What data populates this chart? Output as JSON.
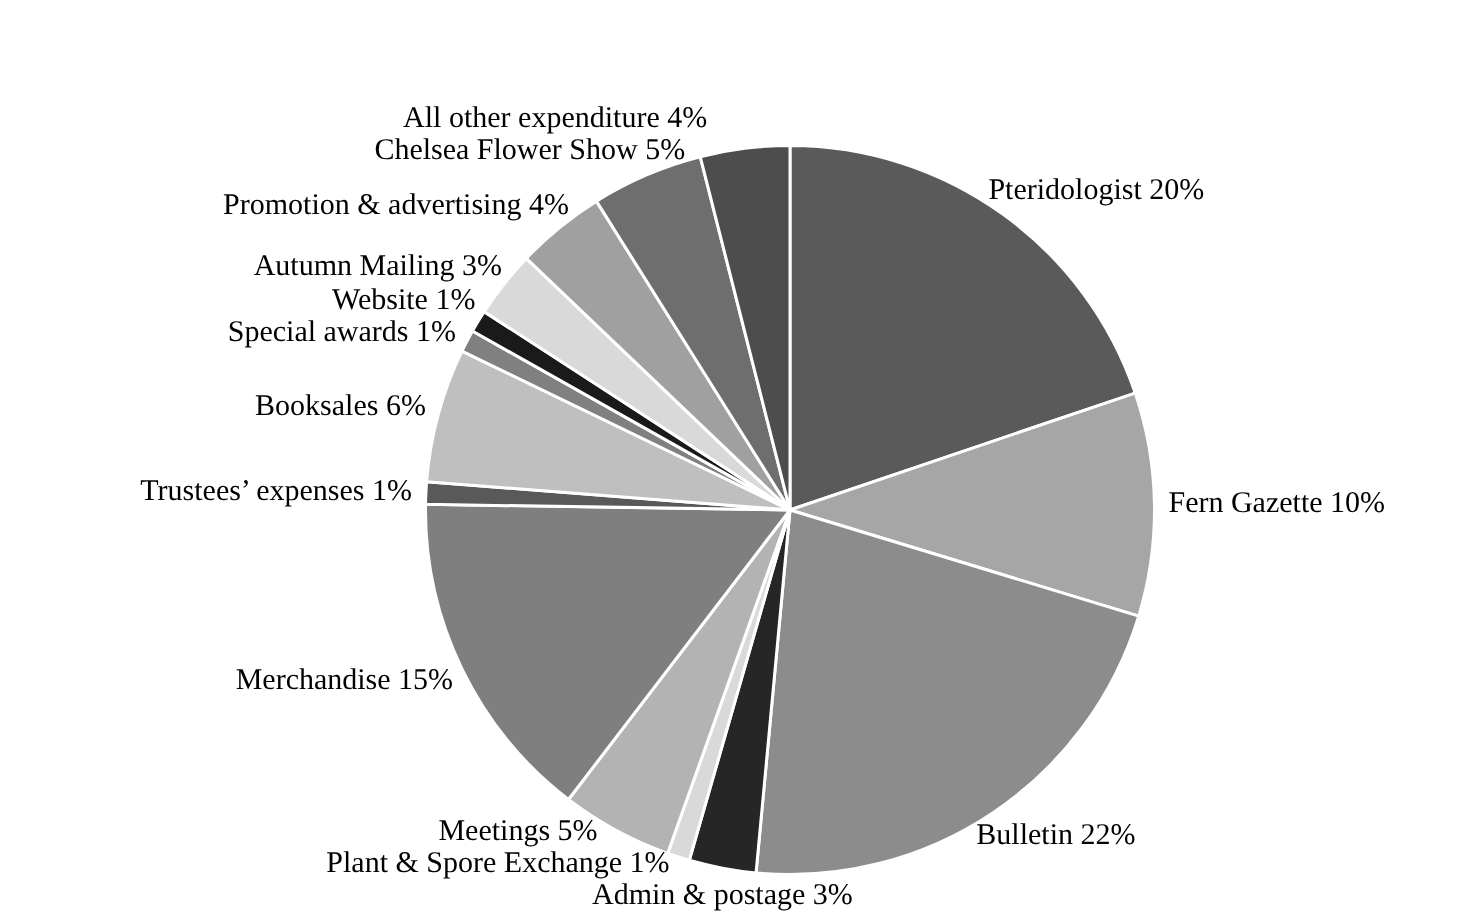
{
  "chart_data": {
    "type": "pie",
    "categories": [
      "Pteridologist",
      "Fern Gazette",
      "Bulletin",
      "Admin & postage",
      "Plant & Spore Exchange",
      "Meetings",
      "Merchandise",
      "Trustees’ expenses",
      "Booksales",
      "Special awards",
      "Website",
      "Autumn Mailing",
      "Promotion & advertising",
      "Chelsea Flower Show",
      "All other expenditure"
    ],
    "values": [
      20,
      10,
      22,
      3,
      1,
      5,
      15,
      1,
      6,
      1,
      1,
      3,
      4,
      5,
      4
    ],
    "value_labels": [
      "20%",
      "10%",
      "22%",
      "3%",
      "1%",
      "5%",
      "15%",
      "1%",
      "6%",
      "1%",
      "1%",
      "3%",
      "4%",
      "5%",
      "4%"
    ],
    "colors": [
      "#5a5a5a",
      "#a6a6a6",
      "#8c8c8c",
      "#262626",
      "#d9d9d9",
      "#b3b3b3",
      "#7f7f7f",
      "#595959",
      "#bfbfbf",
      "#808080",
      "#1a1a1a",
      "#d9d9d9",
      "#a0a0a0",
      "#6e6e6e",
      "#4d4d4d"
    ],
    "legend": false
  }
}
